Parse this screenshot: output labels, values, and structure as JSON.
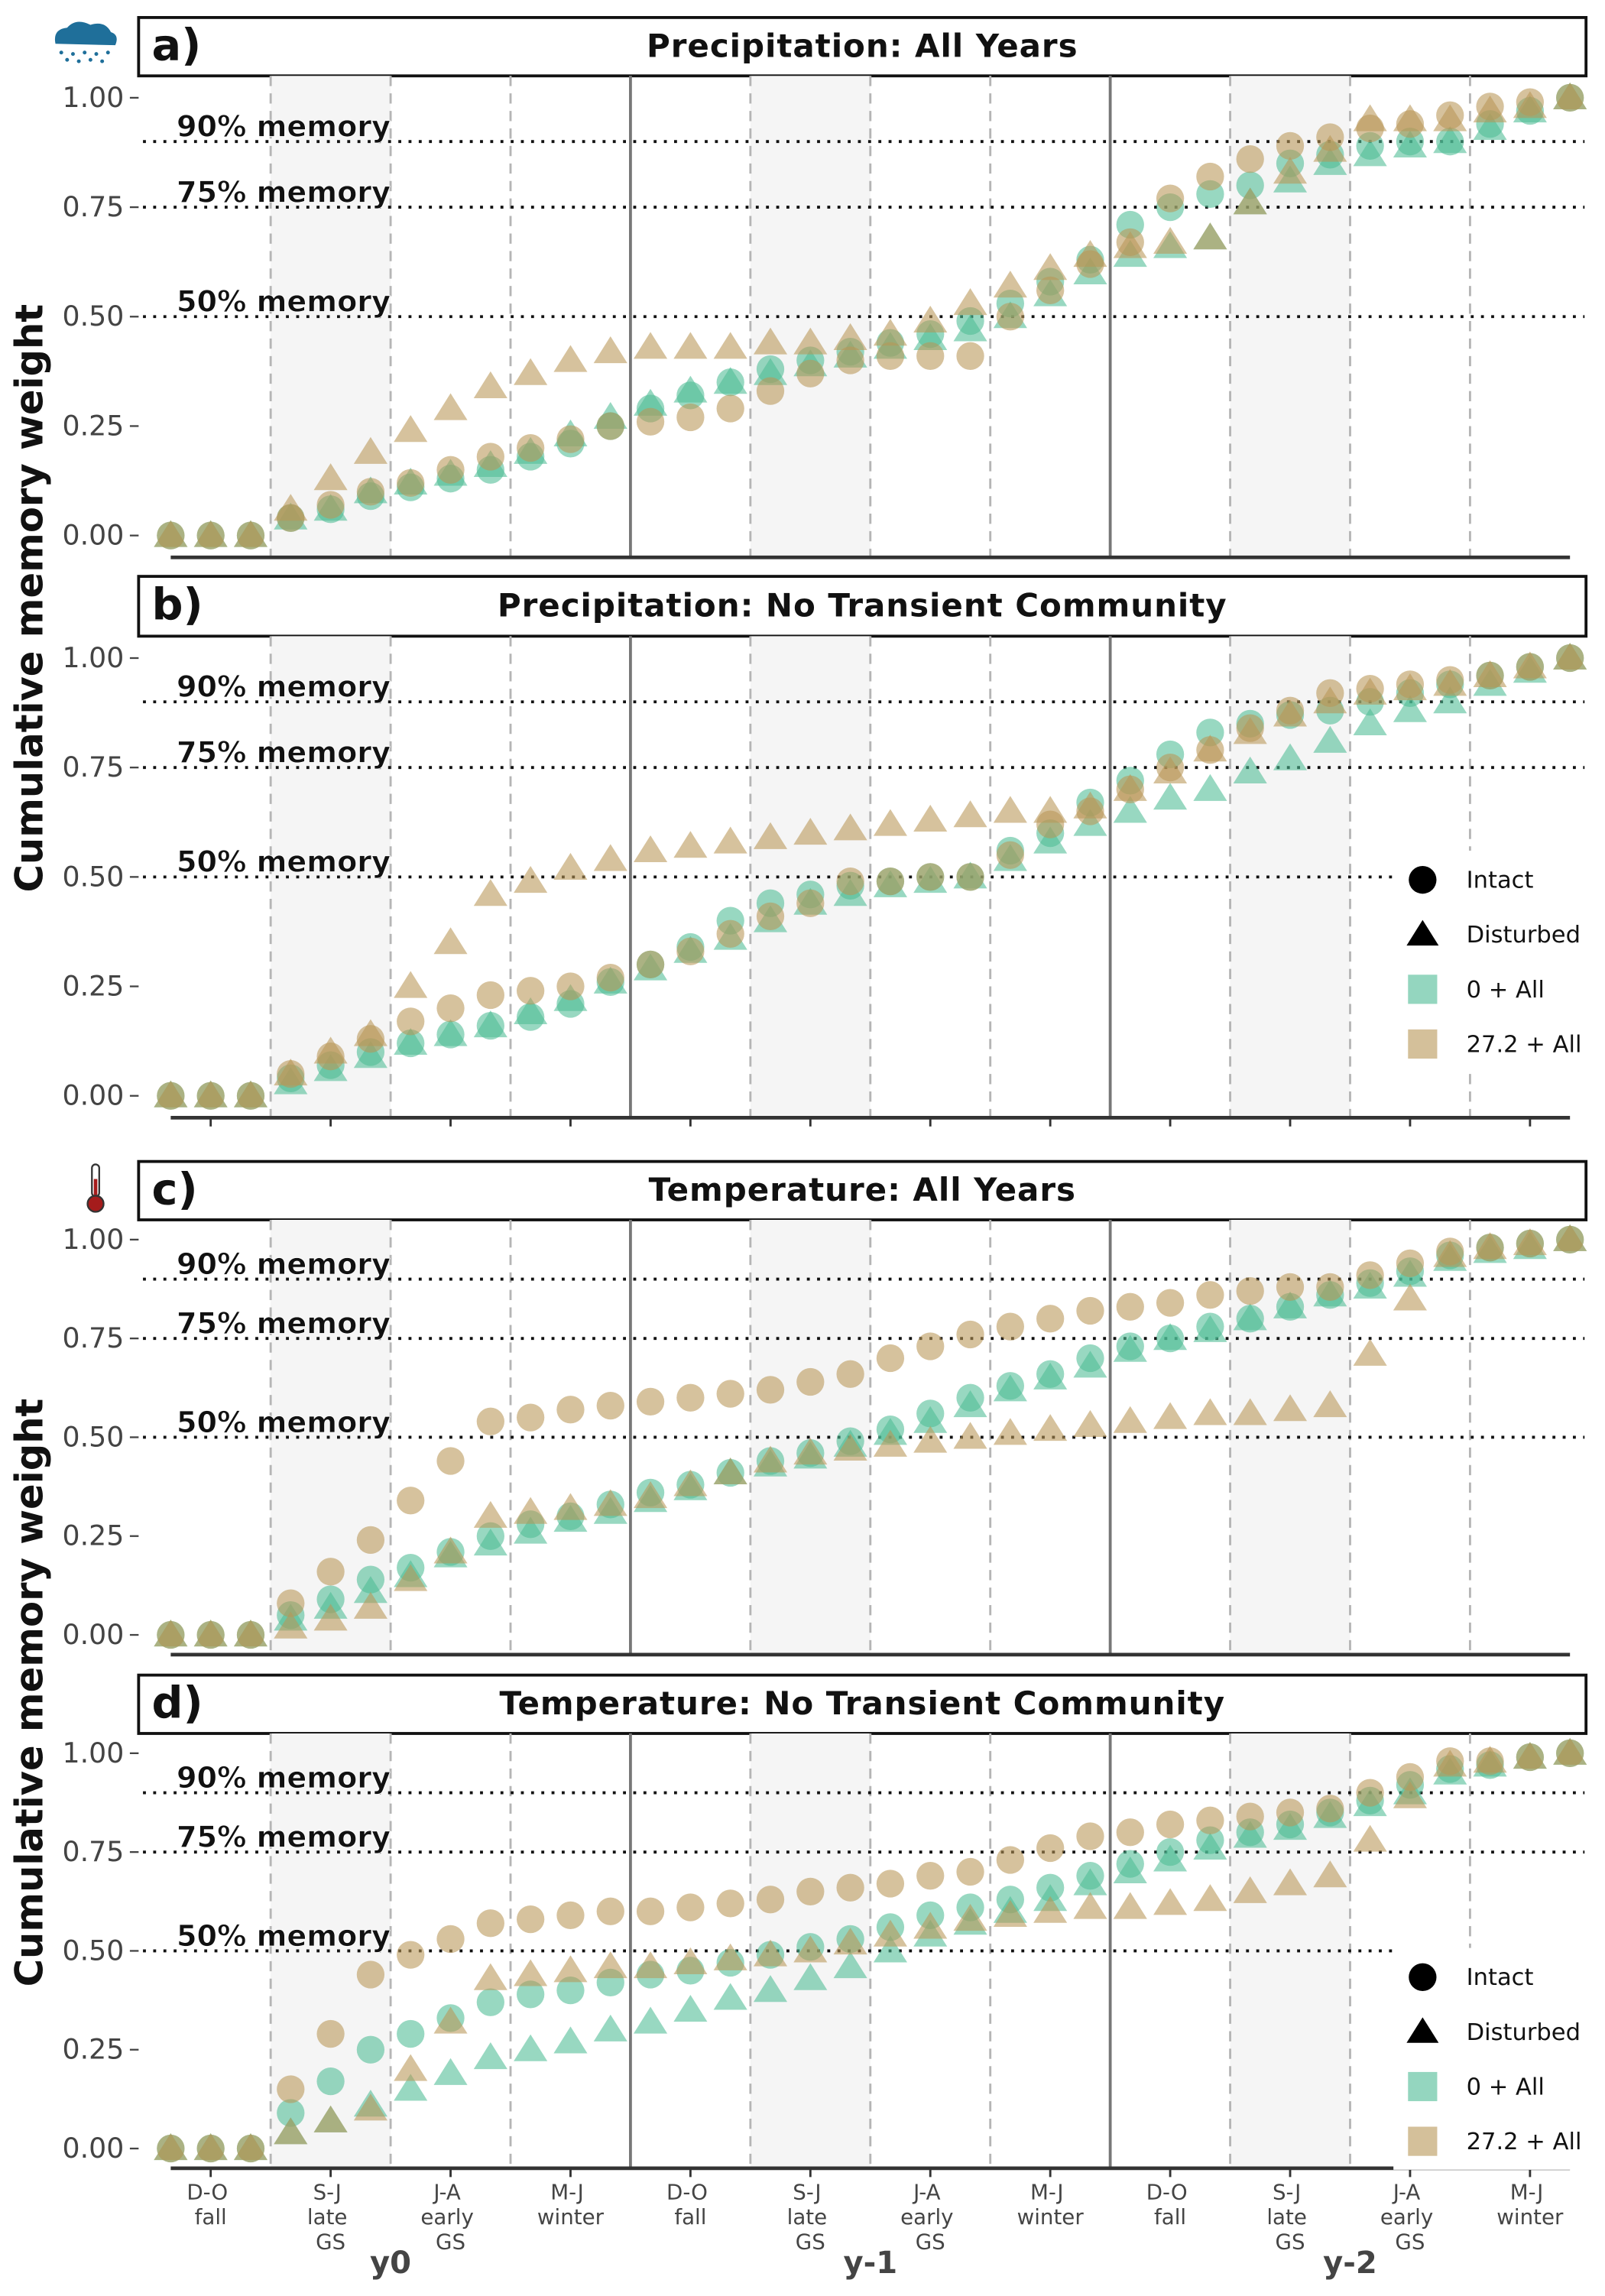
{
  "x_axis": {
    "categories": [
      null,
      "D-O\nfall",
      null,
      null,
      "S-J\nlate\nGS",
      null,
      null,
      "J-A\nearly\nGS",
      null,
      null,
      "M-J\nwinter",
      null,
      null,
      "D-O\nfall",
      null,
      null,
      "S-J\nlate\nGS",
      null,
      null,
      "J-A\nearly\nGS",
      null,
      null,
      "M-J\nwinter",
      null,
      null,
      "D-O\nfall",
      null,
      null,
      "S-J\nlate\nGS",
      null,
      null,
      "J-A\nearly\nGS",
      null,
      null,
      "M-J\nwinter",
      null
    ],
    "groups": [
      "y0",
      "y-1",
      "y-2"
    ]
  },
  "chart_data": [
    {
      "type": "scatter",
      "panel": "a)",
      "title": "Precipitation: All Years",
      "ylabel": "Cumulative memory weight",
      "ylim": [
        -0.05,
        1.05
      ],
      "yticks": [
        {
          "value": 0,
          "label": "0.00"
        },
        {
          "value": 0.25,
          "label": "0.25"
        },
        {
          "value": 0.5,
          "label": "0.50"
        },
        {
          "value": 0.75,
          "label": "0.75"
        },
        {
          "value": 1,
          "label": "1.00"
        }
      ],
      "hlines": [
        {
          "value": 0.9,
          "label": "90% memory"
        },
        {
          "value": 0.75,
          "label": "75% memory"
        },
        {
          "value": 0.5,
          "label": "50% memory"
        }
      ],
      "series": [
        {
          "marker": "circle",
          "color": "#4dbb95",
          "values": [
            0,
            0,
            0,
            0.04,
            0.06,
            0.09,
            0.11,
            0.13,
            0.15,
            0.18,
            0.21,
            0.25,
            0.29,
            0.32,
            0.35,
            0.38,
            0.4,
            0.42,
            0.44,
            0.46,
            0.49,
            0.53,
            0.58,
            0.63,
            0.71,
            0.75,
            0.78,
            0.8,
            0.85,
            0.87,
            0.89,
            0.9,
            0.9,
            0.94,
            0.97,
            1.0
          ]
        },
        {
          "marker": "triangle",
          "color": "#4dbb95",
          "values": [
            0,
            0,
            0,
            0.04,
            0.06,
            0.1,
            0.12,
            0.14,
            0.16,
            0.19,
            0.23,
            0.27,
            0.3,
            0.33,
            0.35,
            0.37,
            0.39,
            0.41,
            0.43,
            0.45,
            0.47,
            0.5,
            0.55,
            0.6,
            0.64,
            0.66,
            0.68,
            0.76,
            0.81,
            0.85,
            0.87,
            0.89,
            0.9,
            0.93,
            0.97,
            1.0
          ]
        },
        {
          "marker": "circle",
          "color": "#b89656",
          "values": [
            0,
            0,
            0,
            0.04,
            0.07,
            0.1,
            0.12,
            0.15,
            0.18,
            0.2,
            0.22,
            0.25,
            0.26,
            0.27,
            0.29,
            0.33,
            0.37,
            0.4,
            0.41,
            0.41,
            0.41,
            0.5,
            0.56,
            0.62,
            0.67,
            0.77,
            0.82,
            0.86,
            0.89,
            0.91,
            0.93,
            0.94,
            0.96,
            0.98,
            0.99,
            1.0
          ]
        },
        {
          "marker": "triangle",
          "color": "#b89656",
          "values": [
            0,
            0,
            0,
            0.06,
            0.13,
            0.19,
            0.24,
            0.29,
            0.34,
            0.37,
            0.4,
            0.42,
            0.43,
            0.43,
            0.43,
            0.44,
            0.44,
            0.45,
            0.46,
            0.49,
            0.53,
            0.57,
            0.61,
            0.64,
            0.66,
            0.67,
            0.68,
            0.76,
            0.83,
            0.88,
            0.95,
            0.95,
            0.95,
            0.97,
            0.98,
            1.0
          ]
        }
      ]
    },
    {
      "type": "scatter",
      "panel": "b)",
      "title": "Precipitation: No Transient Community",
      "ylim": [
        -0.05,
        1.05
      ],
      "yticks": [
        {
          "value": 0,
          "label": "0.00"
        },
        {
          "value": 0.25,
          "label": "0.25"
        },
        {
          "value": 0.5,
          "label": "0.50"
        },
        {
          "value": 0.75,
          "label": "0.75"
        },
        {
          "value": 1,
          "label": "1.00"
        }
      ],
      "hlines": [
        {
          "value": 0.9,
          "label": "90% memory"
        },
        {
          "value": 0.75,
          "label": "75% memory"
        },
        {
          "value": 0.5,
          "label": "50% memory"
        }
      ],
      "legend": {
        "shapes": [
          {
            "label": "Intact",
            "marker": "circle"
          },
          {
            "label": "Disturbed",
            "marker": "triangle"
          }
        ],
        "colors": [
          {
            "label": "0 + All",
            "color": "#4dbb95"
          },
          {
            "label": "27.2 + All",
            "color": "#b89656"
          }
        ]
      },
      "series": [
        {
          "marker": "circle",
          "color": "#4dbb95",
          "values": [
            0,
            0,
            0,
            0.04,
            0.07,
            0.1,
            0.12,
            0.14,
            0.16,
            0.18,
            0.21,
            0.26,
            0.3,
            0.34,
            0.4,
            0.44,
            0.46,
            0.48,
            0.49,
            0.5,
            0.5,
            0.56,
            0.6,
            0.67,
            0.72,
            0.78,
            0.83,
            0.85,
            0.87,
            0.88,
            0.9,
            0.92,
            0.94,
            0.96,
            0.98,
            1.0
          ]
        },
        {
          "marker": "triangle",
          "color": "#4dbb95",
          "values": [
            0,
            0,
            0,
            0.03,
            0.06,
            0.09,
            0.12,
            0.14,
            0.16,
            0.19,
            0.22,
            0.26,
            0.29,
            0.33,
            0.36,
            0.4,
            0.44,
            0.46,
            0.48,
            0.49,
            0.5,
            0.54,
            0.58,
            0.62,
            0.65,
            0.68,
            0.7,
            0.74,
            0.77,
            0.81,
            0.85,
            0.88,
            0.9,
            0.94,
            0.97,
            1.0
          ]
        },
        {
          "marker": "circle",
          "color": "#b89656",
          "values": [
            0,
            0,
            0,
            0.05,
            0.09,
            0.13,
            0.17,
            0.2,
            0.23,
            0.24,
            0.25,
            0.27,
            0.3,
            0.33,
            0.37,
            0.41,
            0.44,
            0.49,
            0.49,
            0.5,
            0.5,
            0.55,
            0.62,
            0.65,
            0.7,
            0.75,
            0.79,
            0.84,
            0.88,
            0.92,
            0.93,
            0.94,
            0.95,
            0.96,
            0.98,
            1.0
          ]
        },
        {
          "marker": "triangle",
          "color": "#b89656",
          "values": [
            0,
            0,
            0,
            0.05,
            0.1,
            0.14,
            0.25,
            0.35,
            0.46,
            0.49,
            0.52,
            0.54,
            0.56,
            0.57,
            0.58,
            0.59,
            0.6,
            0.61,
            0.62,
            0.63,
            0.64,
            0.65,
            0.65,
            0.66,
            0.7,
            0.74,
            0.79,
            0.83,
            0.87,
            0.9,
            0.92,
            0.93,
            0.94,
            0.96,
            0.98,
            1.0
          ]
        }
      ]
    },
    {
      "type": "scatter",
      "panel": "c)",
      "title": "Temperature: All Years",
      "ylabel": "Cumulative memory weight",
      "ylim": [
        -0.05,
        1.05
      ],
      "yticks": [
        {
          "value": 0,
          "label": "0.00"
        },
        {
          "value": 0.25,
          "label": "0.25"
        },
        {
          "value": 0.5,
          "label": "0.50"
        },
        {
          "value": 0.75,
          "label": "0.75"
        },
        {
          "value": 1,
          "label": "1.00"
        }
      ],
      "hlines": [
        {
          "value": 0.9,
          "label": "90% memory"
        },
        {
          "value": 0.75,
          "label": "75% memory"
        },
        {
          "value": 0.5,
          "label": "50% memory"
        }
      ],
      "series": [
        {
          "marker": "circle",
          "color": "#4dbb95",
          "values": [
            0,
            0,
            0,
            0.05,
            0.09,
            0.14,
            0.17,
            0.21,
            0.25,
            0.28,
            0.3,
            0.33,
            0.36,
            0.38,
            0.41,
            0.44,
            0.46,
            0.49,
            0.52,
            0.56,
            0.6,
            0.63,
            0.66,
            0.7,
            0.73,
            0.75,
            0.78,
            0.8,
            0.83,
            0.86,
            0.89,
            0.92,
            0.96,
            0.98,
            0.99,
            1.0
          ]
        },
        {
          "marker": "triangle",
          "color": "#4dbb95",
          "values": [
            0,
            0,
            0,
            0.04,
            0.07,
            0.11,
            0.15,
            0.2,
            0.23,
            0.26,
            0.29,
            0.31,
            0.34,
            0.37,
            0.41,
            0.43,
            0.45,
            0.48,
            0.51,
            0.54,
            0.58,
            0.62,
            0.65,
            0.68,
            0.72,
            0.75,
            0.77,
            0.8,
            0.83,
            0.86,
            0.88,
            0.91,
            0.95,
            0.97,
            0.98,
            1.0
          ]
        },
        {
          "marker": "circle",
          "color": "#b89656",
          "values": [
            0,
            0,
            0,
            0.08,
            0.16,
            0.24,
            0.34,
            0.44,
            0.54,
            0.55,
            0.57,
            0.58,
            0.59,
            0.6,
            0.61,
            0.62,
            0.64,
            0.66,
            0.7,
            0.73,
            0.76,
            0.78,
            0.8,
            0.82,
            0.83,
            0.84,
            0.86,
            0.87,
            0.88,
            0.88,
            0.91,
            0.94,
            0.97,
            0.98,
            0.99,
            1.0
          ]
        },
        {
          "marker": "triangle",
          "color": "#b89656",
          "values": [
            0,
            0,
            0,
            0.02,
            0.04,
            0.07,
            0.14,
            0.21,
            0.3,
            0.31,
            0.32,
            0.33,
            0.35,
            0.38,
            0.41,
            0.44,
            0.46,
            0.47,
            0.48,
            0.49,
            0.5,
            0.51,
            0.52,
            0.53,
            0.54,
            0.55,
            0.56,
            0.56,
            0.57,
            0.58,
            0.71,
            0.85,
            0.96,
            0.98,
            0.99,
            1.0
          ]
        }
      ]
    },
    {
      "type": "scatter",
      "panel": "d)",
      "title": "Temperature: No Transient Community",
      "ylim": [
        -0.05,
        1.05
      ],
      "yticks": [
        {
          "value": 0,
          "label": "0.00"
        },
        {
          "value": 0.25,
          "label": "0.25"
        },
        {
          "value": 0.5,
          "label": "0.50"
        },
        {
          "value": 0.75,
          "label": "0.75"
        },
        {
          "value": 1,
          "label": "1.00"
        }
      ],
      "hlines": [
        {
          "value": 0.9,
          "label": "90% memory"
        },
        {
          "value": 0.75,
          "label": "75% memory"
        },
        {
          "value": 0.5,
          "label": "50% memory"
        }
      ],
      "legend": {
        "shapes": [
          {
            "label": "Intact",
            "marker": "circle"
          },
          {
            "label": "Disturbed",
            "marker": "triangle"
          }
        ],
        "colors": [
          {
            "label": "0 + All",
            "color": "#4dbb95"
          },
          {
            "label": "27.2 + All",
            "color": "#b89656"
          }
        ]
      },
      "series": [
        {
          "marker": "circle",
          "color": "#4dbb95",
          "values": [
            0,
            0,
            0,
            0.09,
            0.17,
            0.25,
            0.29,
            0.33,
            0.37,
            0.39,
            0.4,
            0.42,
            0.44,
            0.45,
            0.47,
            0.49,
            0.51,
            0.53,
            0.56,
            0.59,
            0.61,
            0.63,
            0.66,
            0.69,
            0.72,
            0.75,
            0.78,
            0.8,
            0.82,
            0.85,
            0.88,
            0.92,
            0.96,
            0.97,
            0.99,
            1.0
          ]
        },
        {
          "marker": "triangle",
          "color": "#4dbb95",
          "values": [
            0,
            0,
            0,
            0.04,
            0.07,
            0.11,
            0.15,
            0.19,
            0.23,
            0.25,
            0.27,
            0.3,
            0.32,
            0.35,
            0.38,
            0.4,
            0.43,
            0.46,
            0.5,
            0.54,
            0.57,
            0.6,
            0.63,
            0.67,
            0.7,
            0.73,
            0.76,
            0.79,
            0.81,
            0.84,
            0.87,
            0.9,
            0.95,
            0.97,
            0.99,
            1.0
          ]
        },
        {
          "marker": "circle",
          "color": "#b89656",
          "values": [
            0,
            0,
            0,
            0.15,
            0.29,
            0.44,
            0.49,
            0.53,
            0.57,
            0.58,
            0.59,
            0.6,
            0.6,
            0.61,
            0.62,
            0.63,
            0.65,
            0.66,
            0.67,
            0.69,
            0.7,
            0.73,
            0.76,
            0.79,
            0.8,
            0.82,
            0.83,
            0.84,
            0.85,
            0.86,
            0.9,
            0.94,
            0.98,
            0.98,
            0.99,
            1.0
          ]
        },
        {
          "marker": "triangle",
          "color": "#b89656",
          "values": [
            0,
            0,
            0,
            0.04,
            0.07,
            0.1,
            0.2,
            0.32,
            0.43,
            0.44,
            0.45,
            0.46,
            0.46,
            0.47,
            0.48,
            0.49,
            0.5,
            0.52,
            0.54,
            0.56,
            0.58,
            0.59,
            0.6,
            0.61,
            0.61,
            0.62,
            0.63,
            0.65,
            0.67,
            0.69,
            0.78,
            0.89,
            0.97,
            0.98,
            0.99,
            1.0
          ]
        }
      ]
    }
  ]
}
